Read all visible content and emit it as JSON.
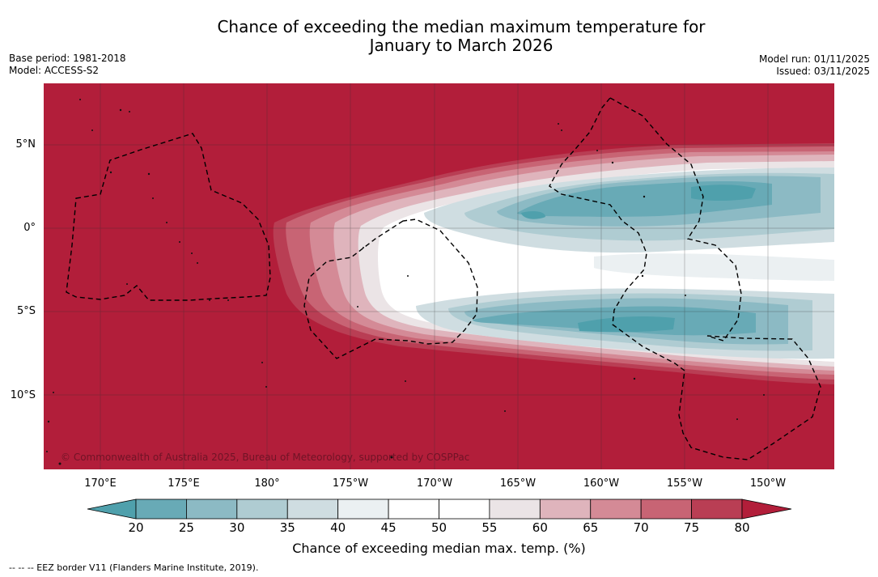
{
  "title_line1": "Chance of exceeding the median maximum temperature for",
  "title_line2": "January to March 2026",
  "base_period": "Base period: 1981-2018",
  "model": "Model: ACCESS-S2",
  "model_run": "Model run: 01/11/2025",
  "issued": "Issued: 03/11/2025",
  "lat_labels": [
    "5°N",
    "0°",
    "5°S",
    "10°S"
  ],
  "lon_labels": [
    "170°E",
    "175°E",
    "180°",
    "175°W",
    "170°W",
    "165°W",
    "160°W",
    "155°W",
    "150°W"
  ],
  "colorbar": {
    "ticks": [
      "20",
      "25",
      "30",
      "35",
      "40",
      "45",
      "50",
      "55",
      "60",
      "65",
      "70",
      "75",
      "80"
    ],
    "colors": [
      "#4fa0ac",
      "#68aab6",
      "#8cbac4",
      "#afccd2",
      "#cfdde1",
      "#ebf0f2",
      "#ffffff",
      "#ffffff",
      "#ebe4e6",
      "#dfb4bc",
      "#d48a96",
      "#c86474",
      "#b93e54",
      "#b21e3a"
    ],
    "title": "Chance of exceeding median max. temp. (%)"
  },
  "copyright": "© Commonwealth of Australia 2025, Bureau of Meteorology, supported by COSPPac",
  "eez_note": "--  --  -- EEZ border V11 (Flanders Marine Institute, 2019)."
}
